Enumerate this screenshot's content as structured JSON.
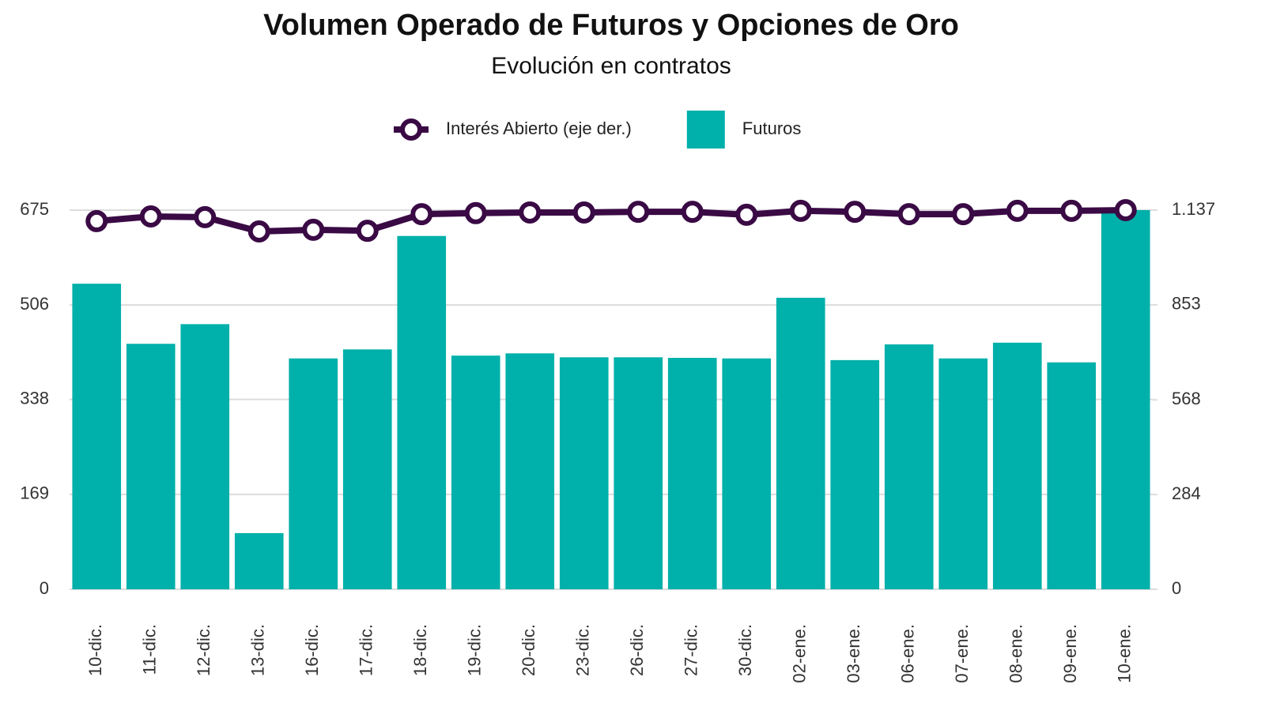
{
  "chart_data": {
    "type": "bar-line",
    "title": "Volumen Operado de Futuros y Opciones de Oro",
    "subtitle": "Evolución en contratos",
    "categories": [
      "10-dic.",
      "11-dic.",
      "12-dic.",
      "13-dic.",
      "16-dic.",
      "17-dic.",
      "18-dic.",
      "19-dic.",
      "20-dic.",
      "23-dic.",
      "26-dic.",
      "27-dic.",
      "30-dic.",
      "02-ene.",
      "03-ene.",
      "06-ene.",
      "07-ene.",
      "08-ene.",
      "09-ene.",
      "10-ene."
    ],
    "series": [
      {
        "name": "Interés Abierto (eje der.)",
        "type": "line",
        "axis": "y2",
        "color": "#3a0a45",
        "values": [
          1104,
          1118,
          1116,
          1073,
          1078,
          1075,
          1125,
          1128,
          1130,
          1130,
          1132,
          1132,
          1123,
          1135,
          1132,
          1125,
          1125,
          1135,
          1135,
          1137
        ]
      },
      {
        "name": "Futuros",
        "type": "bar",
        "color": "#00b0aa",
        "values": [
          544,
          437,
          472,
          100,
          411,
          427,
          629,
          416,
          420,
          413,
          413,
          412,
          411,
          519,
          408,
          436,
          411,
          439,
          404,
          675
        ]
      }
    ],
    "ylim": [
      0,
      675
    ],
    "yticks": [
      0,
      169,
      338,
      506,
      675
    ],
    "y2lim": [
      0,
      1137
    ],
    "y2ticks": [
      0,
      284,
      568,
      853,
      {
        "value": 1137,
        "label": "1.137"
      }
    ],
    "grid": true
  }
}
